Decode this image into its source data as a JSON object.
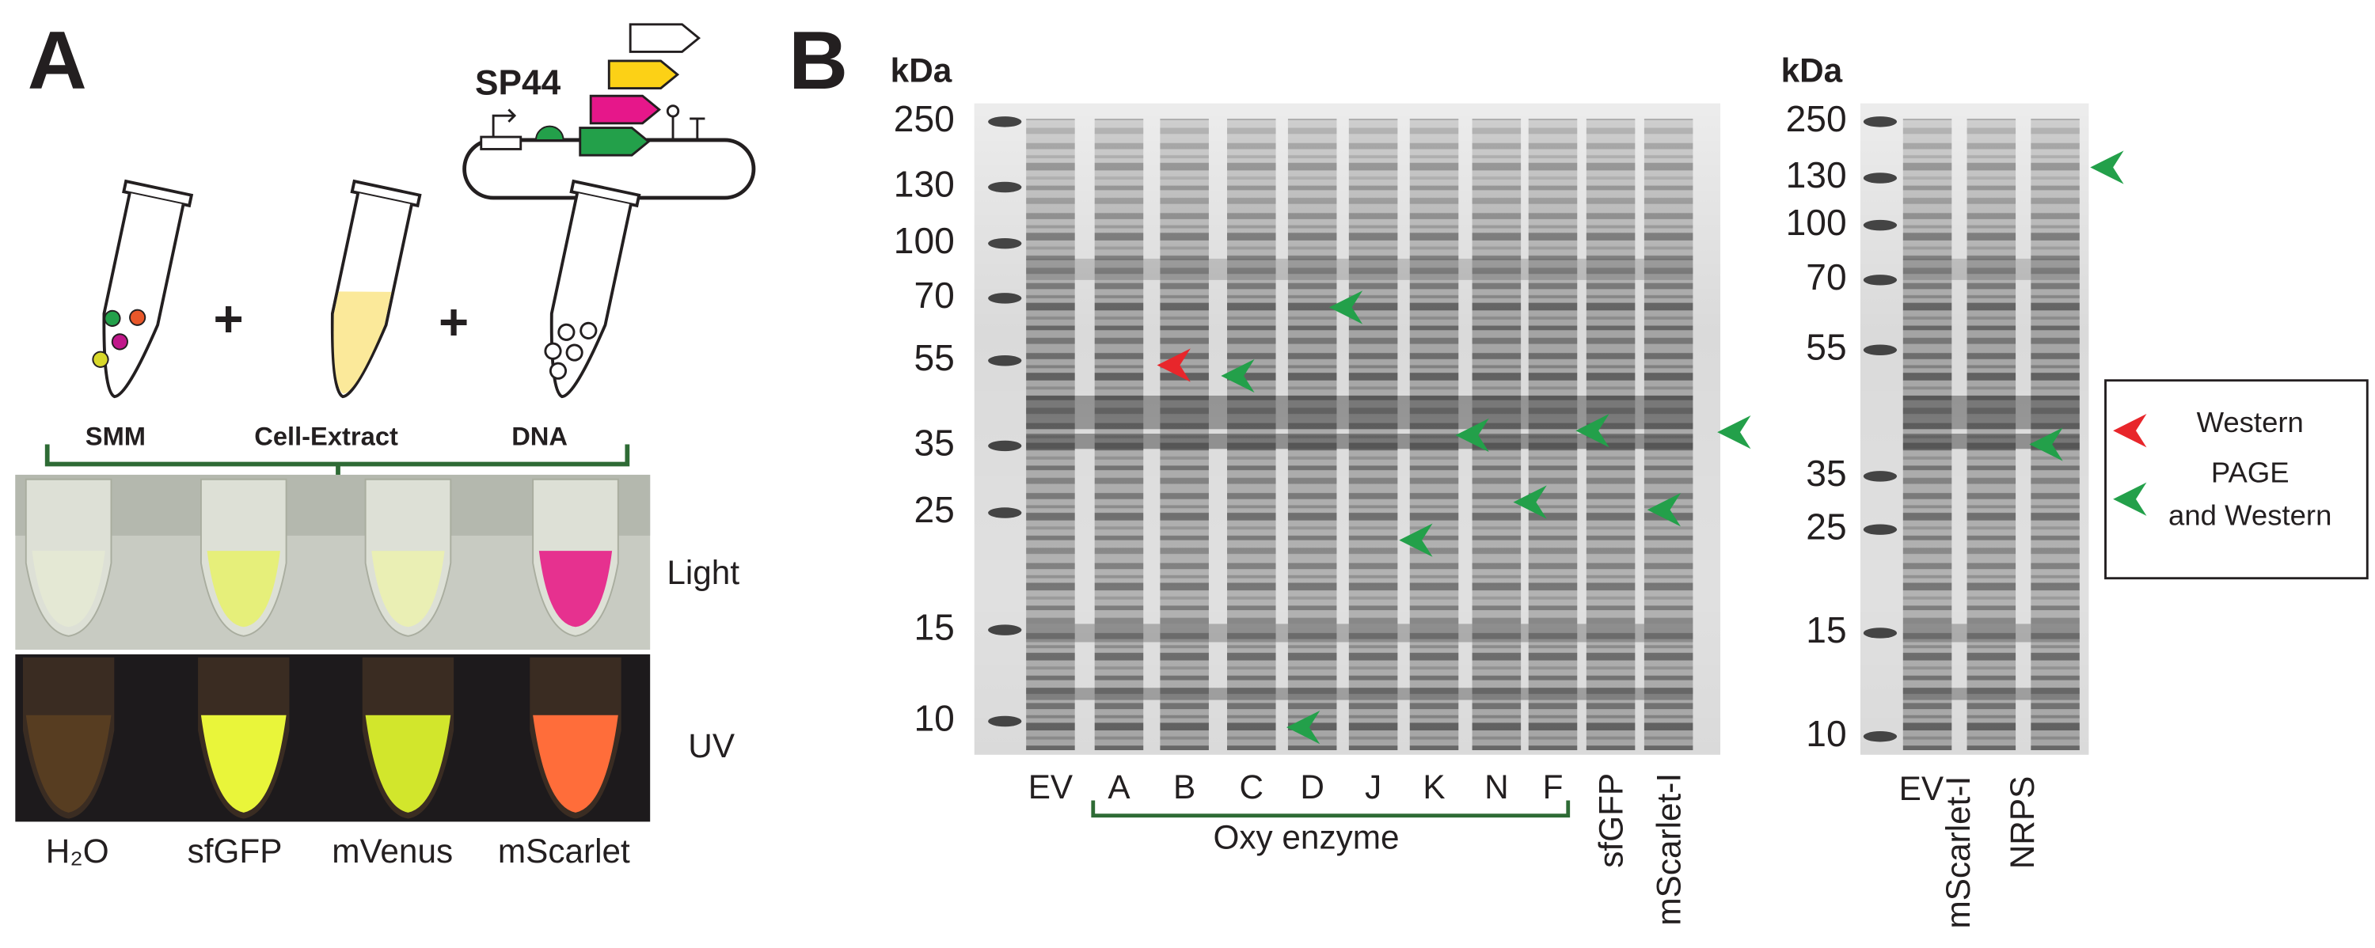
{
  "panel_a": {
    "label": "A",
    "plasmid": "SP44",
    "components": [
      "SMM",
      "Cell-Extract",
      "DNA"
    ],
    "plus": [
      "+",
      "+"
    ],
    "conditions": [
      "Light",
      "UV"
    ],
    "samples": [
      "H₂O",
      "sfGFP",
      "mVenus",
      "mScarlet"
    ]
  },
  "panel_b": {
    "label": "B",
    "gel_1": {
      "unit": "kDa",
      "markers": [
        250,
        130,
        100,
        70,
        55,
        35,
        25,
        15,
        10
      ],
      "lanes": [
        "EV",
        "A",
        "B",
        "C",
        "D",
        "J",
        "K",
        "N",
        "F",
        "sfGFP",
        "mScarlet-I"
      ],
      "group": "Oxy enzyme"
    },
    "gel_2": {
      "unit": "kDa",
      "markers": [
        250,
        130,
        100,
        70,
        55,
        35,
        25,
        15,
        10
      ],
      "lanes": [
        "EV",
        "mScarlet-I",
        "NRPS"
      ]
    },
    "legend": [
      {
        "lines": [
          "Western"
        ],
        "color": "#e8262b"
      },
      {
        "lines": [
          "PAGE",
          "and Western"
        ],
        "color": "#23a04a"
      }
    ]
  }
}
